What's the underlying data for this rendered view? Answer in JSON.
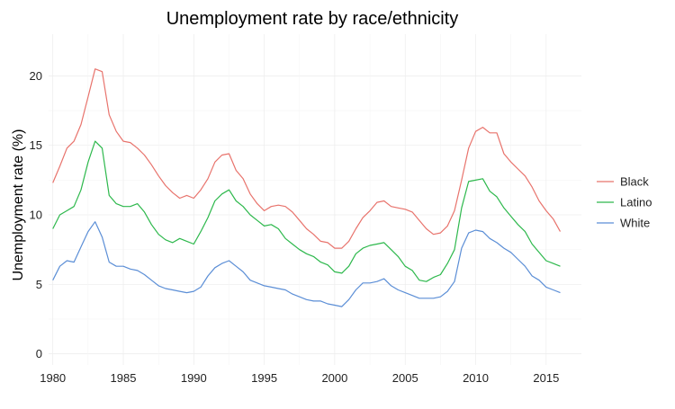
{
  "chart_data": {
    "type": "line",
    "title": "Unemployment rate by race/ethnicity",
    "xlabel": "",
    "ylabel": "Unemployment rate (%)",
    "xlim": [
      1979.7,
      2017.5
    ],
    "ylim": [
      -0.8,
      23.0
    ],
    "xticks": [
      1980,
      1985,
      1990,
      1995,
      2000,
      2005,
      2010,
      2015
    ],
    "yticks": [
      0,
      5,
      10,
      15,
      20
    ],
    "grid": true,
    "legend_position": "right",
    "x": [
      1980.0,
      1980.5,
      1981.0,
      1981.5,
      1982.0,
      1982.5,
      1983.0,
      1983.5,
      1984.0,
      1984.5,
      1985.0,
      1985.5,
      1986.0,
      1986.5,
      1987.0,
      1987.5,
      1988.0,
      1988.5,
      1989.0,
      1989.5,
      1990.0,
      1990.5,
      1991.0,
      1991.5,
      1992.0,
      1992.5,
      1993.0,
      1993.5,
      1994.0,
      1994.5,
      1995.0,
      1995.5,
      1996.0,
      1996.5,
      1997.0,
      1997.5,
      1998.0,
      1998.5,
      1999.0,
      1999.5,
      2000.0,
      2000.5,
      2001.0,
      2001.5,
      2002.0,
      2002.5,
      2003.0,
      2003.5,
      2004.0,
      2004.5,
      2005.0,
      2005.5,
      2006.0,
      2006.5,
      2007.0,
      2007.5,
      2008.0,
      2008.5,
      2009.0,
      2009.5,
      2010.0,
      2010.5,
      2011.0,
      2011.5,
      2012.0,
      2012.5,
      2013.0,
      2013.5,
      2014.0,
      2014.5,
      2015.0,
      2015.5,
      2016.0
    ],
    "series": [
      {
        "name": "Black",
        "color": "#e8736c",
        "values": [
          12.3,
          13.5,
          14.8,
          15.3,
          16.5,
          18.5,
          20.5,
          20.3,
          17.2,
          16.0,
          15.3,
          15.2,
          14.8,
          14.3,
          13.6,
          12.8,
          12.1,
          11.6,
          11.2,
          11.4,
          11.2,
          11.8,
          12.6,
          13.8,
          14.3,
          14.4,
          13.2,
          12.6,
          11.5,
          10.8,
          10.3,
          10.6,
          10.7,
          10.6,
          10.2,
          9.6,
          9.0,
          8.6,
          8.1,
          8.0,
          7.6,
          7.6,
          8.1,
          9.0,
          9.8,
          10.3,
          10.9,
          11.0,
          10.6,
          10.5,
          10.4,
          10.2,
          9.6,
          9.0,
          8.6,
          8.7,
          9.2,
          10.3,
          12.5,
          14.8,
          16.0,
          16.3,
          15.9,
          15.9,
          14.4,
          13.8,
          13.3,
          12.8,
          12.0,
          11.0,
          10.3,
          9.7,
          8.8
        ]
      },
      {
        "name": "Latino",
        "color": "#2db84c",
        "values": [
          9.0,
          10.0,
          10.3,
          10.6,
          11.8,
          13.8,
          15.3,
          14.8,
          11.4,
          10.8,
          10.6,
          10.6,
          10.8,
          10.2,
          9.3,
          8.6,
          8.2,
          8.0,
          8.3,
          8.1,
          7.9,
          8.8,
          9.8,
          11.0,
          11.5,
          11.8,
          11.0,
          10.6,
          10.0,
          9.6,
          9.2,
          9.3,
          9.0,
          8.3,
          7.9,
          7.5,
          7.2,
          7.0,
          6.6,
          6.4,
          5.9,
          5.8,
          6.3,
          7.2,
          7.6,
          7.8,
          7.9,
          8.0,
          7.5,
          7.0,
          6.3,
          6.0,
          5.3,
          5.2,
          5.5,
          5.7,
          6.5,
          7.5,
          10.5,
          12.4,
          12.5,
          12.6,
          11.7,
          11.3,
          10.5,
          9.9,
          9.3,
          8.8,
          7.9,
          7.3,
          6.7,
          6.5,
          6.3
        ]
      },
      {
        "name": "White",
        "color": "#5b8ed6",
        "values": [
          5.3,
          6.3,
          6.7,
          6.6,
          7.7,
          8.8,
          9.5,
          8.4,
          6.6,
          6.3,
          6.3,
          6.1,
          6.0,
          5.7,
          5.3,
          4.9,
          4.7,
          4.6,
          4.5,
          4.4,
          4.5,
          4.8,
          5.6,
          6.2,
          6.5,
          6.7,
          6.3,
          5.9,
          5.3,
          5.1,
          4.9,
          4.8,
          4.7,
          4.6,
          4.3,
          4.1,
          3.9,
          3.8,
          3.8,
          3.6,
          3.5,
          3.4,
          3.9,
          4.6,
          5.1,
          5.1,
          5.2,
          5.4,
          4.9,
          4.6,
          4.4,
          4.2,
          4.0,
          4.0,
          4.0,
          4.1,
          4.5,
          5.2,
          7.6,
          8.7,
          8.9,
          8.8,
          8.3,
          8.0,
          7.6,
          7.3,
          6.8,
          6.3,
          5.6,
          5.3,
          4.8,
          4.6,
          4.4
        ]
      }
    ]
  }
}
